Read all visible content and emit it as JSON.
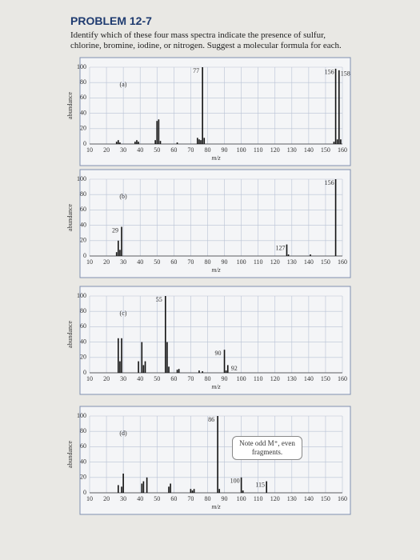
{
  "header": {
    "title": "PROBLEM 12-7",
    "text": "Identify which of these four mass spectra indicate the presence of sulfur, chlorine, bromine, iodine, or nitrogen. Suggest a molecular formula for each."
  },
  "chart_data": [
    {
      "type": "bar",
      "label": "(a)",
      "xlabel": "m/z",
      "ylabel": "abundance",
      "color": "#111",
      "x": [
        26,
        27,
        28,
        37,
        38,
        39,
        49,
        50,
        51,
        52,
        62,
        74,
        75,
        76,
        77,
        78,
        155,
        156,
        157,
        158,
        159
      ],
      "values": [
        3,
        5,
        2,
        3,
        5,
        3,
        5,
        30,
        32,
        4,
        2,
        8,
        6,
        5,
        100,
        8,
        3,
        98,
        6,
        96,
        6
      ],
      "peak_labels": [
        77,
        156,
        158
      ],
      "xlim": [
        10,
        160
      ],
      "ylim": [
        0,
        100
      ],
      "xticks": [
        10,
        20,
        30,
        40,
        50,
        60,
        70,
        80,
        90,
        100,
        110,
        120,
        130,
        140,
        150,
        160
      ],
      "yticks": [
        0,
        20,
        40,
        60,
        80,
        100
      ],
      "grid": true
    },
    {
      "type": "bar",
      "label": "(b)",
      "xlabel": "m/z",
      "ylabel": "abundance",
      "color": "#111",
      "x": [
        26,
        27,
        28,
        29,
        127,
        128,
        141,
        156
      ],
      "values": [
        5,
        20,
        8,
        38,
        15,
        2,
        2,
        100
      ],
      "peak_labels": [
        29,
        127,
        156
      ],
      "xlim": [
        10,
        160
      ],
      "ylim": [
        0,
        100
      ],
      "xticks": [
        10,
        20,
        30,
        40,
        50,
        60,
        70,
        80,
        90,
        100,
        110,
        120,
        130,
        140,
        150,
        160
      ],
      "yticks": [
        0,
        20,
        40,
        60,
        80,
        100
      ],
      "grid": true
    },
    {
      "type": "bar",
      "label": "(c)",
      "xlabel": "m/z",
      "ylabel": "abundance",
      "color": "#111",
      "x": [
        27,
        28,
        29,
        39,
        41,
        42,
        43,
        55,
        56,
        57,
        62,
        63,
        75,
        77,
        90,
        91,
        92
      ],
      "values": [
        45,
        15,
        45,
        15,
        40,
        10,
        15,
        100,
        40,
        8,
        4,
        5,
        3,
        2,
        30,
        3,
        10
      ],
      "peak_labels": [
        55,
        90,
        92
      ],
      "xlim": [
        10,
        160
      ],
      "ylim": [
        0,
        100
      ],
      "xticks": [
        10,
        20,
        30,
        40,
        50,
        60,
        70,
        80,
        90,
        100,
        110,
        120,
        130,
        140,
        150,
        160
      ],
      "yticks": [
        0,
        20,
        40,
        60,
        80,
        100
      ],
      "grid": true
    },
    {
      "type": "bar",
      "label": "(d)",
      "xlabel": "m/z",
      "ylabel": "abundance",
      "color": "#111",
      "note": "Note odd M⁺, even fragments.",
      "x": [
        27,
        29,
        30,
        41,
        42,
        44,
        57,
        58,
        70,
        71,
        72,
        86,
        87,
        100,
        101,
        115
      ],
      "values": [
        10,
        8,
        25,
        12,
        15,
        20,
        8,
        12,
        5,
        3,
        5,
        100,
        5,
        20,
        3,
        15
      ],
      "peak_labels": [
        86,
        100,
        115
      ],
      "xlim": [
        10,
        160
      ],
      "ylim": [
        0,
        100
      ],
      "xticks": [
        10,
        20,
        30,
        40,
        50,
        60,
        70,
        80,
        90,
        100,
        110,
        120,
        130,
        140,
        150,
        160
      ],
      "yticks": [
        0,
        20,
        40,
        60,
        80,
        100
      ],
      "grid": true
    }
  ]
}
